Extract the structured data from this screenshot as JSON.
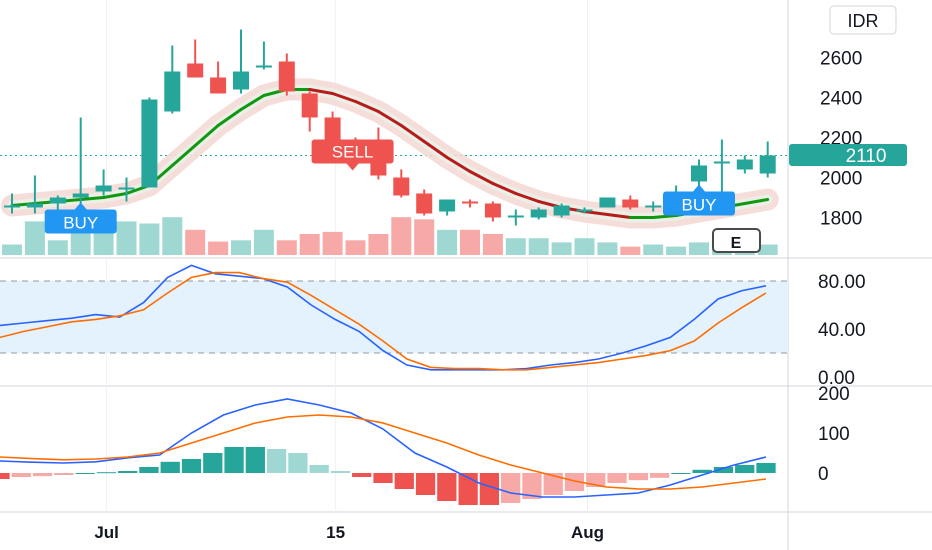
{
  "currency": "IDR",
  "last_price": "2110",
  "colors": {
    "up": "#26a69a",
    "down": "#ef5350",
    "vol_up": "#9fd8d2",
    "vol_down": "#f7a9a7",
    "signal_buy": "#2196f3",
    "signal_sell": "#ef5350",
    "ma_up": "#129712",
    "ma_down": "#b71c1c",
    "stoch_k": "#2962ff",
    "stoch_d": "#ff6d00",
    "band_fill": "#e3f2fd"
  },
  "earnings_label": "E",
  "signals": [
    {
      "label": "BUY",
      "type": "buy",
      "index": 3
    },
    {
      "label": "SELL",
      "type": "sell",
      "index": 14
    },
    {
      "label": "BUY",
      "type": "buy",
      "index": 30
    }
  ],
  "chart_data": [
    {
      "type": "candlestick",
      "x_labels": [
        "Jul",
        "15",
        "Aug"
      ],
      "x_label_index": [
        4,
        14,
        25
      ],
      "ylim": [
        1660,
        2780
      ],
      "y_ticks": [
        1800,
        2000,
        2200,
        2400,
        2600
      ],
      "candles": [
        {
          "o": 1850,
          "h": 1920,
          "l": 1820,
          "c": 1860
        },
        {
          "o": 1850,
          "h": 2010,
          "l": 1820,
          "c": 1870
        },
        {
          "o": 1870,
          "h": 1910,
          "l": 1840,
          "c": 1900
        },
        {
          "o": 1900,
          "h": 2300,
          "l": 1870,
          "c": 1920
        },
        {
          "o": 1930,
          "h": 2040,
          "l": 1910,
          "c": 1960
        },
        {
          "o": 1950,
          "h": 2000,
          "l": 1880,
          "c": 1950
        },
        {
          "o": 1950,
          "h": 2400,
          "l": 1950,
          "c": 2390
        },
        {
          "o": 2330,
          "h": 2660,
          "l": 2320,
          "c": 2530
        },
        {
          "o": 2570,
          "h": 2690,
          "l": 2500,
          "c": 2500
        },
        {
          "o": 2500,
          "h": 2580,
          "l": 2420,
          "c": 2420
        },
        {
          "o": 2440,
          "h": 2740,
          "l": 2420,
          "c": 2530
        },
        {
          "o": 2560,
          "h": 2680,
          "l": 2540,
          "c": 2560
        },
        {
          "o": 2580,
          "h": 2620,
          "l": 2410,
          "c": 2430
        },
        {
          "o": 2420,
          "h": 2430,
          "l": 2230,
          "c": 2300
        },
        {
          "o": 2300,
          "h": 2330,
          "l": 2140,
          "c": 2190
        },
        {
          "o": 2190,
          "h": 2200,
          "l": 2080,
          "c": 2160
        },
        {
          "o": 2140,
          "h": 2250,
          "l": 1990,
          "c": 2010
        },
        {
          "o": 2000,
          "h": 2040,
          "l": 1900,
          "c": 1910
        },
        {
          "o": 1920,
          "h": 1940,
          "l": 1810,
          "c": 1820
        },
        {
          "o": 1830,
          "h": 1890,
          "l": 1810,
          "c": 1890
        },
        {
          "o": 1880,
          "h": 1890,
          "l": 1850,
          "c": 1870
        },
        {
          "o": 1870,
          "h": 1880,
          "l": 1780,
          "c": 1800
        },
        {
          "o": 1810,
          "h": 1840,
          "l": 1760,
          "c": 1810
        },
        {
          "o": 1800,
          "h": 1850,
          "l": 1790,
          "c": 1840
        },
        {
          "o": 1810,
          "h": 1870,
          "l": 1800,
          "c": 1860
        },
        {
          "o": 1830,
          "h": 1850,
          "l": 1820,
          "c": 1840
        },
        {
          "o": 1850,
          "h": 1900,
          "l": 1850,
          "c": 1900
        },
        {
          "o": 1890,
          "h": 1910,
          "l": 1840,
          "c": 1850
        },
        {
          "o": 1850,
          "h": 1880,
          "l": 1830,
          "c": 1860
        },
        {
          "o": 1890,
          "h": 1960,
          "l": 1860,
          "c": 1930
        },
        {
          "o": 1980,
          "h": 2090,
          "l": 1960,
          "c": 2060
        },
        {
          "o": 2070,
          "h": 2190,
          "l": 1930,
          "c": 2080
        },
        {
          "o": 2040,
          "h": 2110,
          "l": 2020,
          "c": 2090
        },
        {
          "o": 2020,
          "h": 2180,
          "l": 2000,
          "c": 2110
        }
      ],
      "volume_relative": [
        0.25,
        0.8,
        0.35,
        0.75,
        0.85,
        0.8,
        0.75,
        0.9,
        0.6,
        0.32,
        0.35,
        0.6,
        0.35,
        0.5,
        0.55,
        0.35,
        0.5,
        0.9,
        0.85,
        0.6,
        0.6,
        0.5,
        0.4,
        0.4,
        0.3,
        0.4,
        0.3,
        0.2,
        0.25,
        0.2,
        0.3,
        0.35,
        0.3,
        0.25
      ],
      "ma": [
        1860,
        1870,
        1880,
        1890,
        1900,
        1920,
        1960,
        2060,
        2160,
        2260,
        2340,
        2410,
        2440,
        2440,
        2420,
        2380,
        2330,
        2260,
        2180,
        2100,
        2030,
        1970,
        1920,
        1880,
        1850,
        1830,
        1815,
        1800,
        1800,
        1810,
        1830,
        1850,
        1870,
        1890
      ]
    },
    {
      "type": "line",
      "name": "Stochastic",
      "ylim": [
        0,
        100
      ],
      "y_ticks": [
        0,
        40,
        80
      ],
      "y_tick_labels": [
        "0.00",
        "40.00",
        "80.00"
      ],
      "band": [
        20,
        80
      ],
      "series": [
        {
          "values": [
            43,
            45,
            47,
            49,
            52,
            50,
            62,
            83,
            93,
            86,
            84,
            82,
            75,
            60,
            48,
            38,
            22,
            10,
            6,
            6,
            6,
            6,
            7,
            10,
            12,
            15,
            20,
            26,
            33,
            48,
            65,
            72,
            76
          ]
        },
        {
          "values": [
            33,
            38,
            42,
            46,
            48,
            51,
            56,
            70,
            83,
            87,
            87,
            82,
            79,
            68,
            56,
            44,
            30,
            15,
            8,
            7,
            7,
            6,
            6,
            8,
            10,
            12,
            15,
            18,
            22,
            30,
            45,
            58,
            70
          ]
        }
      ]
    },
    {
      "type": "bar",
      "name": "MACD",
      "ylim": [
        -110,
        210
      ],
      "y_ticks": [
        0,
        100,
        200
      ],
      "histogram": [
        -15,
        -10,
        -8,
        -5,
        0,
        2,
        5,
        15,
        28,
        35,
        50,
        65,
        65,
        60,
        50,
        20,
        5,
        -10,
        -25,
        -40,
        -55,
        -70,
        -80,
        -80,
        -75,
        -65,
        -55,
        -45,
        -35,
        -25,
        -18,
        -12,
        0,
        8,
        15,
        20,
        25
      ],
      "series": [
        {
          "values": [
            30,
            27,
            25,
            28,
            38,
            45,
            100,
            145,
            170,
            185,
            170,
            150,
            110,
            50,
            15,
            -25,
            -50,
            -60,
            -60,
            -55,
            -50,
            -30,
            -5,
            20,
            40
          ]
        },
        {
          "values": [
            40,
            36,
            33,
            35,
            40,
            50,
            75,
            100,
            125,
            140,
            145,
            140,
            125,
            100,
            75,
            45,
            20,
            0,
            -20,
            -35,
            -40,
            -40,
            -35,
            -25,
            -15
          ]
        }
      ]
    }
  ]
}
